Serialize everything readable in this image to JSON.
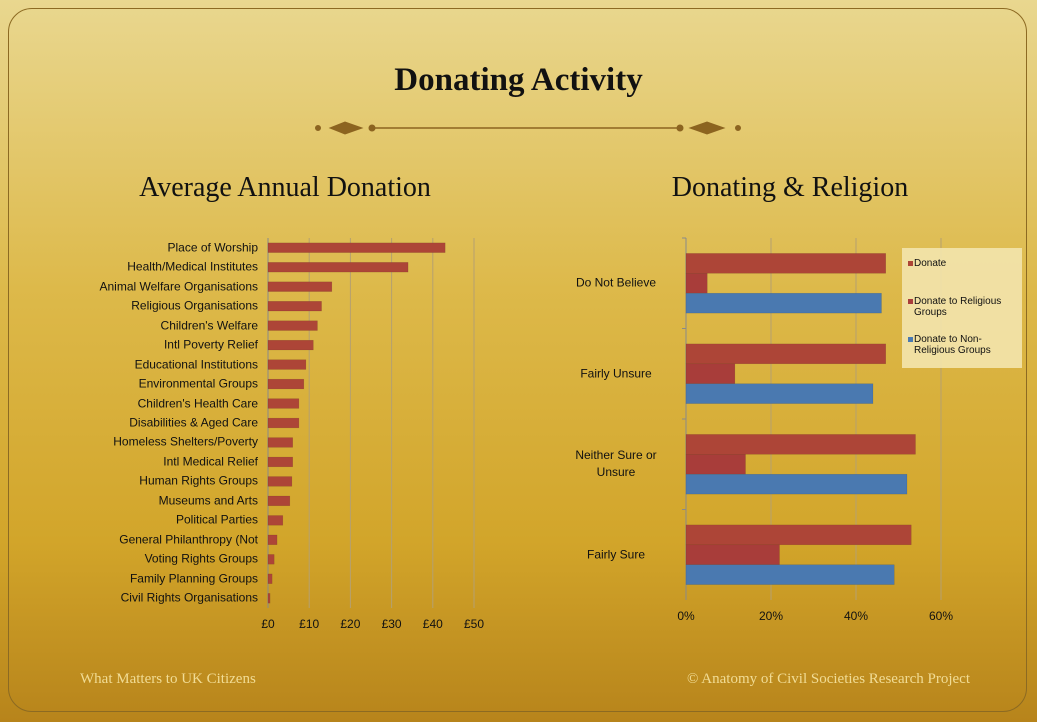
{
  "slide": {
    "title": "Donating Activity",
    "footer_left": "What Matters to UK Citizens",
    "footer_right": "© Anatomy of Civil Societies Research Project"
  },
  "chart_data": [
    {
      "type": "bar",
      "orientation": "horizontal",
      "title": "Average Annual Donation",
      "categories": [
        "Place of Worship",
        "Health/Medical Institutes",
        "Animal Welfare Organisations",
        "Religious Organisations",
        "Children's Welfare",
        "Intl Poverty Relief",
        "Educational Institutions",
        "Environmental Groups",
        "Children's Health Care",
        "Disabilities & Aged Care",
        "Homeless Shelters/Poverty",
        "Intl Medical Relief",
        "Human Rights Groups",
        "Museums and Arts",
        "Political Parties",
        "General Philanthropy (Not",
        "Voting Rights Groups",
        "Family Planning Groups",
        "Civil Rights Organisations"
      ],
      "values": [
        43,
        34,
        15.5,
        13,
        12,
        11,
        9.2,
        8.7,
        7.5,
        7.5,
        6,
        6,
        5.8,
        5.3,
        3.6,
        2.2,
        1.5,
        1,
        0.5
      ],
      "color": "#ad4537",
      "xlim": [
        0,
        50
      ],
      "xticks": [
        {
          "value": 0,
          "label": "£0"
        },
        {
          "value": 10,
          "label": "£10"
        },
        {
          "value": 20,
          "label": "£20"
        },
        {
          "value": 30,
          "label": "£30"
        },
        {
          "value": 40,
          "label": "£40"
        },
        {
          "value": 50,
          "label": "£50"
        }
      ],
      "grid": true
    },
    {
      "type": "bar",
      "orientation": "horizontal",
      "title": "Donating & Religion",
      "categories": [
        "Do Not Believe",
        "Fairly Unsure",
        "Neither Sure or Unsure",
        "Fairly Sure"
      ],
      "series": [
        {
          "name": "Donate",
          "color": "#ad4537",
          "values": [
            47,
            47,
            54,
            53
          ]
        },
        {
          "name": "Donate to Religious Groups",
          "color": "#a83d3a",
          "values": [
            5,
            11.5,
            14,
            22
          ]
        },
        {
          "name": "Donate to Non-Religious Groups",
          "color": "#4a79b0",
          "values": [
            46,
            44,
            52,
            49
          ]
        }
      ],
      "xlim": [
        0,
        60
      ],
      "xticks": [
        {
          "value": 0,
          "label": "0%"
        },
        {
          "value": 20,
          "label": "20%"
        },
        {
          "value": 40,
          "label": "40%"
        },
        {
          "value": 60,
          "label": "60%"
        }
      ],
      "grid": true,
      "legend": "upper-right"
    }
  ]
}
